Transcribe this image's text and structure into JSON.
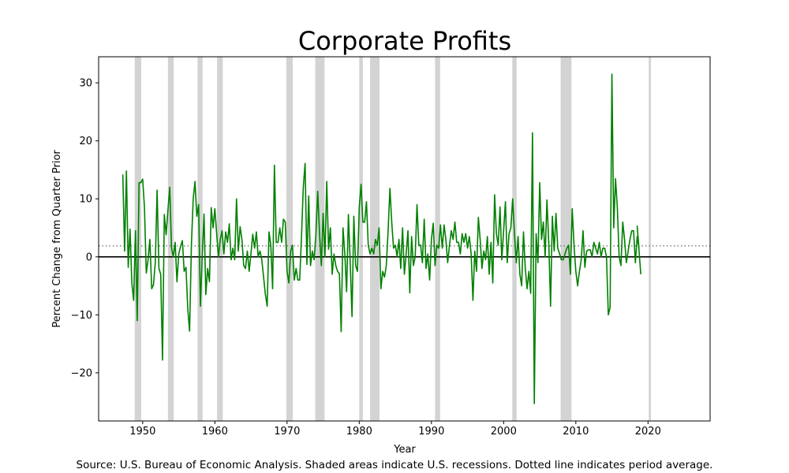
{
  "chart_data": {
    "type": "line",
    "title": "Corporate Profits",
    "xlabel": "Year",
    "ylabel": "Percent Change from Quarter Prior",
    "source": "Source: U.S. Bureau of Economic Analysis. Shaded areas indicate U.S. recessions. Dotted line indicates period average.",
    "xlim": [
      1943.9,
      2028.6
    ],
    "ylim": [
      -28.3,
      34.5
    ],
    "x_ticks": [
      1950,
      1960,
      1970,
      1980,
      1990,
      2000,
      2010,
      2020
    ],
    "y_ticks": [
      -20,
      -10,
      0,
      10,
      20,
      30
    ],
    "average": 1.9,
    "zero_line": 0,
    "colors": {
      "series": "#008000",
      "recession": "#d3d3d3",
      "average": "#808080",
      "zero": "#000000"
    },
    "recessions": [
      [
        1948.9,
        1949.8
      ],
      [
        1953.5,
        1954.3
      ],
      [
        1957.6,
        1958.3
      ],
      [
        1960.3,
        1961.1
      ],
      [
        1969.9,
        1970.8
      ],
      [
        1973.9,
        1975.2
      ],
      [
        1980.0,
        1980.5
      ],
      [
        1981.5,
        1982.8
      ],
      [
        1990.5,
        1991.2
      ],
      [
        2001.2,
        2001.8
      ],
      [
        2007.9,
        2009.4
      ],
      [
        2020.1,
        2020.4
      ]
    ],
    "series": [
      {
        "name": "Corporate Profits",
        "points": [
          [
            1947.25,
            14.2
          ],
          [
            1947.5,
            1.0
          ],
          [
            1947.75,
            14.8
          ],
          [
            1948.0,
            -1.8
          ],
          [
            1948.25,
            4.8
          ],
          [
            1948.5,
            -4.5
          ],
          [
            1948.75,
            -7.5
          ],
          [
            1949.0,
            4.5
          ],
          [
            1949.25,
            -11.0
          ],
          [
            1949.5,
            12.8
          ],
          [
            1949.75,
            12.8
          ],
          [
            1950.0,
            13.4
          ],
          [
            1950.25,
            8.5
          ],
          [
            1950.5,
            -2.8
          ],
          [
            1950.75,
            -0.5
          ],
          [
            1951.0,
            3.0
          ],
          [
            1951.25,
            -5.5
          ],
          [
            1951.5,
            -4.8
          ],
          [
            1951.75,
            -1.0
          ],
          [
            1952.0,
            11.5
          ],
          [
            1952.25,
            -2.0
          ],
          [
            1952.5,
            -3.0
          ],
          [
            1952.75,
            -17.8
          ],
          [
            1953.0,
            7.3
          ],
          [
            1953.25,
            3.8
          ],
          [
            1953.5,
            8.0
          ],
          [
            1953.75,
            12.0
          ],
          [
            1954.0,
            1.5
          ],
          [
            1954.25,
            0.0
          ],
          [
            1954.5,
            2.5
          ],
          [
            1954.75,
            -4.3
          ],
          [
            1955.0,
            0.5
          ],
          [
            1955.25,
            1.8
          ],
          [
            1955.5,
            2.8
          ],
          [
            1955.75,
            -2.5
          ],
          [
            1956.0,
            -1.8
          ],
          [
            1956.25,
            -9.0
          ],
          [
            1956.5,
            -12.8
          ],
          [
            1956.75,
            2.0
          ],
          [
            1957.0,
            10.0
          ],
          [
            1957.25,
            13.0
          ],
          [
            1957.5,
            7.0
          ],
          [
            1957.75,
            9.0
          ],
          [
            1958.0,
            -8.5
          ],
          [
            1958.25,
            0.0
          ],
          [
            1958.5,
            7.4
          ],
          [
            1958.75,
            -6.5
          ],
          [
            1959.0,
            -2.0
          ],
          [
            1959.25,
            -4.3
          ],
          [
            1959.5,
            8.5
          ],
          [
            1959.75,
            5.0
          ],
          [
            1960.0,
            8.3
          ],
          [
            1960.25,
            4.0
          ],
          [
            1960.5,
            0.0
          ],
          [
            1960.75,
            3.0
          ],
          [
            1961.0,
            4.5
          ],
          [
            1961.25,
            0.5
          ],
          [
            1961.5,
            4.3
          ],
          [
            1961.75,
            2.5
          ],
          [
            1962.0,
            5.7
          ],
          [
            1962.25,
            -0.5
          ],
          [
            1962.5,
            1.5
          ],
          [
            1962.75,
            -0.5
          ],
          [
            1963.0,
            10.0
          ],
          [
            1963.25,
            1.0
          ],
          [
            1963.5,
            5.2
          ],
          [
            1963.75,
            3.0
          ],
          [
            1964.0,
            -1.5
          ],
          [
            1964.25,
            -2.0
          ],
          [
            1964.5,
            1.0
          ],
          [
            1964.75,
            -2.5
          ],
          [
            1965.0,
            0.5
          ],
          [
            1965.25,
            3.9
          ],
          [
            1965.5,
            1.5
          ],
          [
            1965.75,
            4.3
          ],
          [
            1966.0,
            0.0
          ],
          [
            1966.25,
            1.0
          ],
          [
            1966.5,
            -0.5
          ],
          [
            1966.75,
            -3.5
          ],
          [
            1967.0,
            -6.5
          ],
          [
            1967.25,
            -8.5
          ],
          [
            1967.5,
            4.3
          ],
          [
            1967.75,
            2.0
          ],
          [
            1968.0,
            -5.5
          ],
          [
            1968.25,
            15.8
          ],
          [
            1968.5,
            2.5
          ],
          [
            1968.75,
            2.5
          ],
          [
            1969.0,
            5.0
          ],
          [
            1969.25,
            2.5
          ],
          [
            1969.5,
            6.5
          ],
          [
            1969.75,
            6.0
          ],
          [
            1970.0,
            -2.5
          ],
          [
            1970.25,
            -4.5
          ],
          [
            1970.5,
            1.0
          ],
          [
            1970.75,
            2.0
          ],
          [
            1971.0,
            -4.0
          ],
          [
            1971.25,
            -2.0
          ],
          [
            1971.5,
            -4.0
          ],
          [
            1971.75,
            -4.0
          ],
          [
            1972.0,
            3.5
          ],
          [
            1972.25,
            12.0
          ],
          [
            1972.5,
            16.1
          ],
          [
            1972.75,
            -1.3
          ],
          [
            1973.0,
            10.5
          ],
          [
            1973.25,
            -1.5
          ],
          [
            1973.5,
            1.0
          ],
          [
            1973.75,
            -0.5
          ],
          [
            1974.0,
            4.0
          ],
          [
            1974.25,
            11.3
          ],
          [
            1974.5,
            4.0
          ],
          [
            1974.75,
            -1.5
          ],
          [
            1975.0,
            7.5
          ],
          [
            1975.25,
            0.0
          ],
          [
            1975.5,
            13.0
          ],
          [
            1975.75,
            1.3
          ],
          [
            1976.0,
            5.0
          ],
          [
            1976.25,
            -3.0
          ],
          [
            1976.5,
            0.5
          ],
          [
            1976.75,
            -1.5
          ],
          [
            1977.0,
            -2.5
          ],
          [
            1977.25,
            -2.9
          ],
          [
            1977.5,
            -12.9
          ],
          [
            1977.75,
            5.0
          ],
          [
            1978.0,
            0.5
          ],
          [
            1978.25,
            -6.0
          ],
          [
            1978.5,
            7.3
          ],
          [
            1978.75,
            -1.0
          ],
          [
            1979.0,
            -10.3
          ],
          [
            1979.25,
            7.0
          ],
          [
            1979.5,
            -1.5
          ],
          [
            1979.75,
            -2.5
          ],
          [
            1980.0,
            8.5
          ],
          [
            1980.25,
            12.5
          ],
          [
            1980.5,
            6.0
          ],
          [
            1980.75,
            6.0
          ],
          [
            1981.0,
            9.5
          ],
          [
            1981.25,
            2.0
          ],
          [
            1981.5,
            0.5
          ],
          [
            1981.75,
            1.5
          ],
          [
            1982.0,
            0.5
          ],
          [
            1982.25,
            3.0
          ],
          [
            1982.5,
            2.0
          ],
          [
            1982.75,
            5.0
          ],
          [
            1983.0,
            -5.5
          ],
          [
            1983.25,
            -2.5
          ],
          [
            1983.5,
            -3.5
          ],
          [
            1983.75,
            -1.5
          ],
          [
            1984.0,
            4.5
          ],
          [
            1984.25,
            11.8
          ],
          [
            1984.5,
            6.0
          ],
          [
            1984.75,
            1.5
          ],
          [
            1985.0,
            2.0
          ],
          [
            1985.25,
            0.0
          ],
          [
            1985.5,
            3.0
          ],
          [
            1985.75,
            -2.0
          ],
          [
            1986.0,
            5.0
          ],
          [
            1986.25,
            -3.0
          ],
          [
            1986.5,
            0.5
          ],
          [
            1986.75,
            4.5
          ],
          [
            1987.0,
            -6.2
          ],
          [
            1987.25,
            3.5
          ],
          [
            1987.5,
            -1.5
          ],
          [
            1987.75,
            0.0
          ],
          [
            1988.0,
            9.0
          ],
          [
            1988.25,
            2.0
          ],
          [
            1988.5,
            2.0
          ],
          [
            1988.75,
            -1.0
          ],
          [
            1989.0,
            6.5
          ],
          [
            1989.25,
            -2.0
          ],
          [
            1989.5,
            0.5
          ],
          [
            1989.75,
            -4.0
          ],
          [
            1990.0,
            3.0
          ],
          [
            1990.25,
            5.8
          ],
          [
            1990.5,
            -1.5
          ],
          [
            1990.75,
            2.0
          ],
          [
            1991.0,
            1.5
          ],
          [
            1991.25,
            5.5
          ],
          [
            1991.5,
            1.5
          ],
          [
            1991.75,
            5.5
          ],
          [
            1992.0,
            3.0
          ],
          [
            1992.25,
            -1.0
          ],
          [
            1992.5,
            2.0
          ],
          [
            1992.75,
            4.5
          ],
          [
            1993.0,
            3.0
          ],
          [
            1993.25,
            6.0
          ],
          [
            1993.5,
            2.5
          ],
          [
            1993.75,
            2.5
          ],
          [
            1994.0,
            0.5
          ],
          [
            1994.25,
            4.0
          ],
          [
            1994.5,
            2.5
          ],
          [
            1994.75,
            4.0
          ],
          [
            1995.0,
            1.5
          ],
          [
            1995.25,
            3.5
          ],
          [
            1995.5,
            0.5
          ],
          [
            1995.75,
            -7.5
          ],
          [
            1996.0,
            1.0
          ],
          [
            1996.25,
            -2.5
          ],
          [
            1996.5,
            6.8
          ],
          [
            1996.75,
            3.0
          ],
          [
            1997.0,
            -2.0
          ],
          [
            1997.25,
            1.0
          ],
          [
            1997.5,
            -0.5
          ],
          [
            1997.75,
            3.5
          ],
          [
            1998.0,
            -3.0
          ],
          [
            1998.25,
            2.5
          ],
          [
            1998.5,
            -4.5
          ],
          [
            1998.75,
            10.7
          ],
          [
            1999.0,
            4.0
          ],
          [
            1999.25,
            2.0
          ],
          [
            1999.5,
            8.6
          ],
          [
            1999.75,
            -0.5
          ],
          [
            2000.0,
            4.5
          ],
          [
            2000.25,
            9.5
          ],
          [
            2000.5,
            -1.0
          ],
          [
            2000.75,
            4.0
          ],
          [
            2001.0,
            5.0
          ],
          [
            2001.25,
            10.0
          ],
          [
            2001.5,
            4.0
          ],
          [
            2001.75,
            -1.0
          ],
          [
            2002.0,
            3.5
          ],
          [
            2002.25,
            -3.0
          ],
          [
            2002.5,
            -5.0
          ],
          [
            2002.75,
            4.3
          ],
          [
            2003.0,
            -2.0
          ],
          [
            2003.25,
            -5.5
          ],
          [
            2003.5,
            -2.5
          ],
          [
            2003.75,
            -6.3
          ],
          [
            2004.0,
            21.4
          ],
          [
            2004.25,
            -25.3
          ],
          [
            2004.5,
            4.0
          ],
          [
            2004.75,
            -1.0
          ],
          [
            2005.0,
            12.8
          ],
          [
            2005.25,
            3.0
          ],
          [
            2005.5,
            6.0
          ],
          [
            2005.75,
            0.0
          ],
          [
            2006.0,
            9.8
          ],
          [
            2006.25,
            2.5
          ],
          [
            2006.5,
            -8.5
          ],
          [
            2006.75,
            7.0
          ],
          [
            2007.0,
            1.0
          ],
          [
            2007.25,
            7.5
          ],
          [
            2007.5,
            1.5
          ],
          [
            2007.75,
            0.5
          ],
          [
            2008.0,
            -0.5
          ],
          [
            2008.25,
            -0.5
          ],
          [
            2008.5,
            0.5
          ],
          [
            2008.75,
            1.5
          ],
          [
            2009.0,
            2.0
          ],
          [
            2009.25,
            -3.0
          ],
          [
            2009.5,
            8.3
          ],
          [
            2009.75,
            2.0
          ],
          [
            2010.0,
            -2.5
          ],
          [
            2010.25,
            -5.0
          ],
          [
            2010.5,
            -2.5
          ],
          [
            2010.75,
            -0.5
          ],
          [
            2011.0,
            4.5
          ],
          [
            2011.25,
            -1.8
          ],
          [
            2011.5,
            1.0
          ],
          [
            2011.75,
            1.2
          ],
          [
            2012.0,
            1.2
          ],
          [
            2012.25,
            0.0
          ],
          [
            2012.5,
            2.5
          ],
          [
            2012.75,
            1.5
          ],
          [
            2013.0,
            0.5
          ],
          [
            2013.25,
            2.5
          ],
          [
            2013.5,
            0.0
          ],
          [
            2013.75,
            1.5
          ],
          [
            2014.0,
            1.5
          ],
          [
            2014.25,
            0.0
          ],
          [
            2014.5,
            -10.0
          ],
          [
            2014.75,
            -8.7
          ],
          [
            2015.0,
            31.5
          ],
          [
            2015.25,
            5.0
          ],
          [
            2015.5,
            13.5
          ],
          [
            2015.75,
            8.5
          ],
          [
            2016.0,
            0.0
          ],
          [
            2016.25,
            -1.5
          ],
          [
            2016.5,
            6.0
          ],
          [
            2016.75,
            3.0
          ],
          [
            2017.0,
            -1.0
          ],
          [
            2017.25,
            1.0
          ],
          [
            2017.5,
            3.0
          ],
          [
            2017.75,
            4.5
          ],
          [
            2018.0,
            4.5
          ],
          [
            2018.25,
            -1.0
          ],
          [
            2018.5,
            3.5
          ],
          [
            2018.75,
            1.5
          ],
          [
            2018.5,
            5.3
          ],
          [
            2019.0,
            -3.0
          ]
        ]
      }
    ]
  }
}
